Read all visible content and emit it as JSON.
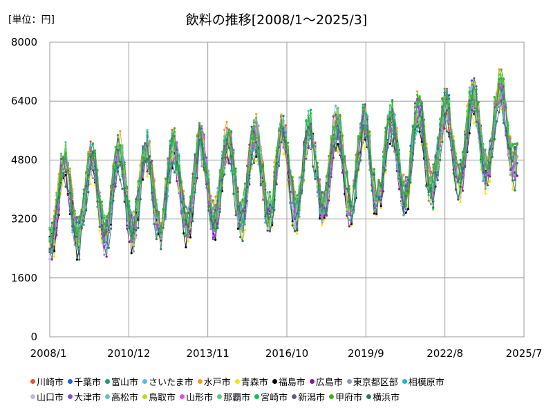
{
  "header": {
    "unit": "[単位：円]",
    "title": "飲料の推移[2008/1～2025/3]"
  },
  "chart_data": {
    "type": "line",
    "title": "飲料の推移[2008/1～2025/3]",
    "unit": "[単位：円]",
    "ylim": [
      0,
      8000
    ],
    "yticks": [
      "0",
      "1600",
      "3200",
      "4800",
      "6400",
      "8000"
    ],
    "xticks": [
      "2008/1",
      "2010/12",
      "2013/11",
      "2016/10",
      "2019/9",
      "2022/8",
      "2025/7"
    ],
    "x_range": [
      "2008/1",
      "2025/7"
    ],
    "grid": true,
    "legend_position": "bottom",
    "series": [
      {
        "name": "川崎市",
        "color": "#e8562a"
      },
      {
        "name": "千葉市",
        "color": "#1f5fe0"
      },
      {
        "name": "富山市",
        "color": "#1a9a6a"
      },
      {
        "name": "さいたま市",
        "color": "#5bb8f0"
      },
      {
        "name": "水戸市",
        "color": "#f0a020"
      },
      {
        "name": "青森市",
        "color": "#f5e600"
      },
      {
        "name": "福島市",
        "color": "#000000"
      },
      {
        "name": "広島市",
        "color": "#8a1a9a"
      },
      {
        "name": "東京都区部",
        "color": "#8a9aa8"
      },
      {
        "name": "相模原市",
        "color": "#20b8c0"
      },
      {
        "name": "山口市",
        "color": "#c0b8e8"
      },
      {
        "name": "大津市",
        "color": "#7a50e0"
      },
      {
        "name": "高松市",
        "color": "#70b8d0"
      },
      {
        "name": "鳥取市",
        "color": "#b0e020"
      },
      {
        "name": "山形市",
        "color": "#e050e0"
      },
      {
        "name": "那覇市",
        "color": "#50d070"
      },
      {
        "name": "宮崎市",
        "color": "#10c050"
      },
      {
        "name": "新潟市",
        "color": "#605a88"
      },
      {
        "name": "甲府市",
        "color": "#40b020"
      },
      {
        "name": "横浜市",
        "color": "#2a7a60"
      }
    ]
  }
}
